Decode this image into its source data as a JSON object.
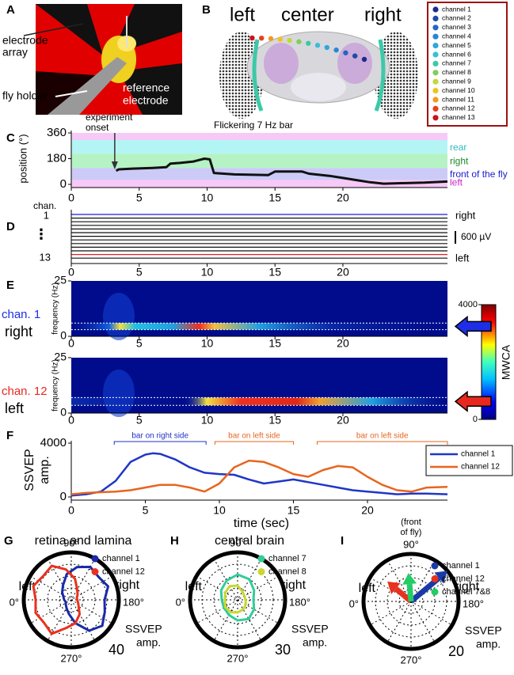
{
  "panel_a": {
    "label": "A",
    "texts": [
      "electrode",
      "array",
      "fly holder",
      "reference",
      "electrode"
    ]
  },
  "panel_b": {
    "label": "B",
    "headers": [
      "left",
      "center",
      "right"
    ],
    "channels": [
      {
        "name": "channel 1",
        "color": "#1b2a8c"
      },
      {
        "name": "channel 2",
        "color": "#1f4aa8"
      },
      {
        "name": "channel 3",
        "color": "#2467c0"
      },
      {
        "name": "channel 4",
        "color": "#2a86d2"
      },
      {
        "name": "channel 5",
        "color": "#2fa6de"
      },
      {
        "name": "channel 6",
        "color": "#36bfd8"
      },
      {
        "name": "channel 7",
        "color": "#3cc9a8"
      },
      {
        "name": "channel 8",
        "color": "#7fcf5c"
      },
      {
        "name": "channel 9",
        "color": "#c2d83a"
      },
      {
        "name": "channel 10",
        "color": "#f2c21c"
      },
      {
        "name": "channel 11",
        "color": "#f39a1c"
      },
      {
        "name": "channel 12",
        "color": "#e4421e"
      },
      {
        "name": "channel 13",
        "color": "#c8141a"
      }
    ]
  },
  "chart_data": [
    {
      "type": "line",
      "label": "C",
      "title": "Flickering 7 Hz bar",
      "ylabel": "position (°)",
      "annotation": [
        "experiment",
        "onset"
      ],
      "annotation_x": 3.2,
      "bands": [
        {
          "from": 310,
          "to": 360,
          "color": "#f7c9f7"
        },
        {
          "name": "rear",
          "from": 215,
          "to": 310,
          "color": "#b3f5f5",
          "text_color": "#2ebdbd"
        },
        {
          "name": "right",
          "from": 115,
          "to": 215,
          "color": "#b5f2c4",
          "text_color": "#1a8a2a"
        },
        {
          "name": "front of the fly",
          "from": 30,
          "to": 115,
          "color": "#cccbf7",
          "text_color": "#1a1acc"
        },
        {
          "name": "left",
          "from": 0,
          "to": 30,
          "color": "#f7c9f7",
          "text_color": "#d020d0"
        }
      ],
      "x": [
        3.3,
        3.5,
        4.5,
        6,
        7,
        7.3,
        8,
        9,
        9.8,
        10.2,
        10.5,
        12,
        14.5,
        15,
        17,
        17.5,
        19,
        20,
        21,
        22,
        23,
        24,
        26,
        27.7
      ],
      "values": [
        95,
        105,
        110,
        115,
        120,
        145,
        150,
        160,
        180,
        175,
        80,
        70,
        65,
        90,
        90,
        75,
        60,
        45,
        30,
        15,
        5,
        8,
        12,
        20
      ],
      "color": "#111111",
      "xlim": [
        0,
        27.7
      ],
      "xticks": [
        0,
        5,
        10,
        15,
        20
      ],
      "ylim": [
        0,
        360
      ],
      "yticks": [
        0,
        180,
        360
      ]
    },
    {
      "type": "traces",
      "label": "D",
      "ylabel": "chan.",
      "channel_labels": [
        "1",
        "⋮",
        "13"
      ],
      "sides": [
        "right",
        "left"
      ],
      "scale": "600 µV",
      "colors": [
        "#1a1ae0",
        "#111111",
        "#111111",
        "#111111",
        "#111111",
        "#111111",
        "#111111",
        "#111111",
        "#111111",
        "#111111",
        "#111111",
        "#e02020",
        "#111111"
      ],
      "xlim": [
        0,
        27.7
      ],
      "xticks": [
        0,
        5,
        10,
        15,
        20
      ]
    },
    {
      "type": "heatmap",
      "label": "E",
      "ylabel": "frequency (Hz)",
      "xlim": [
        0,
        27.7
      ],
      "xticks": [
        0,
        5,
        10,
        15,
        20
      ],
      "ylim": [
        0,
        25
      ],
      "yticks": [
        0,
        25
      ],
      "clabel": "MWCA",
      "clim": [
        0,
        4000
      ],
      "cticks": [
        0,
        4000
      ],
      "maps": [
        {
          "channel": "chan. 1",
          "side": "right",
          "color": "#1e2ee6",
          "lines": [
            6,
            3
          ]
        },
        {
          "channel": "chan. 12",
          "side": "left",
          "color": "#e8281e",
          "lines": [
            7,
            3.5
          ]
        }
      ]
    },
    {
      "type": "line",
      "label": "F",
      "ylabel": [
        "SSVEP",
        "amp."
      ],
      "xlabel": "time (sec)",
      "annotations": [
        {
          "text": "bar on right side",
          "color": "#2030c8",
          "from": 2.9,
          "to": 9.1
        },
        {
          "text": "bar on left side",
          "color": "#e8641e",
          "from": 9.7,
          "to": 15
        },
        {
          "text": "bar on left side",
          "color": "#e8641e",
          "from": 16.6,
          "to": 25.4
        }
      ],
      "x": [
        0,
        1,
        2,
        3,
        4,
        5,
        5.5,
        6,
        7,
        8,
        9,
        10,
        11,
        12,
        13,
        14,
        15,
        16,
        17,
        18,
        19,
        20,
        21,
        22,
        23,
        24,
        25.4
      ],
      "series": [
        {
          "name": "channel 1",
          "color": "#2036c8",
          "values": [
            100,
            200,
            400,
            1200,
            2600,
            3150,
            3250,
            3200,
            2800,
            2200,
            1800,
            1700,
            1650,
            1300,
            1000,
            1150,
            1300,
            1100,
            900,
            700,
            500,
            400,
            300,
            200,
            250,
            250,
            200
          ]
        },
        {
          "name": "channel 12",
          "color": "#e8641e",
          "values": [
            200,
            300,
            350,
            400,
            500,
            700,
            800,
            900,
            900,
            700,
            400,
            1000,
            2200,
            2700,
            2600,
            2200,
            1700,
            1500,
            2000,
            2300,
            2200,
            1500,
            900,
            500,
            400,
            700,
            750
          ]
        }
      ],
      "xlim": [
        0,
        25.4
      ],
      "xticks": [
        0,
        5,
        10,
        15,
        20
      ],
      "ylim": [
        0,
        4000
      ],
      "yticks": [
        0,
        4000
      ]
    },
    {
      "type": "polar",
      "label": "G",
      "title": "retina and lamina",
      "angle_labels": [
        "90°",
        "0°",
        "180°",
        "270°"
      ],
      "sides": [
        "left",
        "right"
      ],
      "rlim": [
        0,
        40
      ],
      "rticks": [
        40
      ],
      "rlabel": [
        "SSVEP",
        "amp."
      ],
      "angles": [
        0,
        20,
        40,
        60,
        80,
        100,
        120,
        140,
        160,
        180,
        200,
        220,
        240,
        260,
        280,
        300,
        320,
        340
      ],
      "series": [
        {
          "name": "channel 1",
          "color": "#1a2aa8",
          "values": [
            6,
            7,
            10,
            14,
            22,
            28,
            32,
            30,
            33,
            28,
            30,
            34,
            30,
            20,
            12,
            8,
            6,
            5
          ]
        },
        {
          "name": "channel 12",
          "color": "#e8321e",
          "values": [
            30,
            34,
            31,
            33,
            26,
            18,
            10,
            7,
            5,
            5,
            6,
            8,
            14,
            20,
            24,
            33,
            30,
            32
          ]
        }
      ]
    },
    {
      "type": "polar",
      "label": "H",
      "title": "central brain",
      "angle_labels": [
        "90°",
        "0°",
        "180°",
        "270°"
      ],
      "sides": [
        "left",
        "right"
      ],
      "rlim": [
        0,
        30
      ],
      "rticks": [
        30
      ],
      "rlabel": [
        "SSVEP",
        "amp."
      ],
      "angles": [
        0,
        30,
        60,
        90,
        120,
        150,
        180,
        210,
        240,
        270,
        300,
        330
      ],
      "series": [
        {
          "name": "channel 7",
          "color": "#33cc99",
          "values": [
            10,
            12,
            14,
            16,
            15,
            12,
            10,
            12,
            14,
            13,
            11,
            10
          ]
        },
        {
          "name": "channel 8",
          "color": "#c8d830",
          "values": [
            8,
            9,
            10,
            9,
            6,
            5,
            5,
            6,
            7,
            8,
            9,
            9
          ]
        }
      ]
    },
    {
      "type": "arrows",
      "label": "I",
      "front": [
        "(front",
        "of fly)"
      ],
      "angle_labels": [
        "90°",
        "0°",
        "180°",
        "270°"
      ],
      "sides": [
        "left",
        "right"
      ],
      "rlim": [
        0,
        20
      ],
      "rticks": [
        20
      ],
      "rlabel": [
        "SSVEP",
        "amp."
      ],
      "series": [
        {
          "name": "channel 1",
          "color": "#1a3aa8",
          "angle": 140,
          "value": 20
        },
        {
          "name": "channel 12",
          "color": "#e8321e",
          "angle": 40,
          "value": 13
        },
        {
          "name": "channel 7&8",
          "color": "#22cc66",
          "angle": 85,
          "value": 12
        }
      ]
    }
  ]
}
